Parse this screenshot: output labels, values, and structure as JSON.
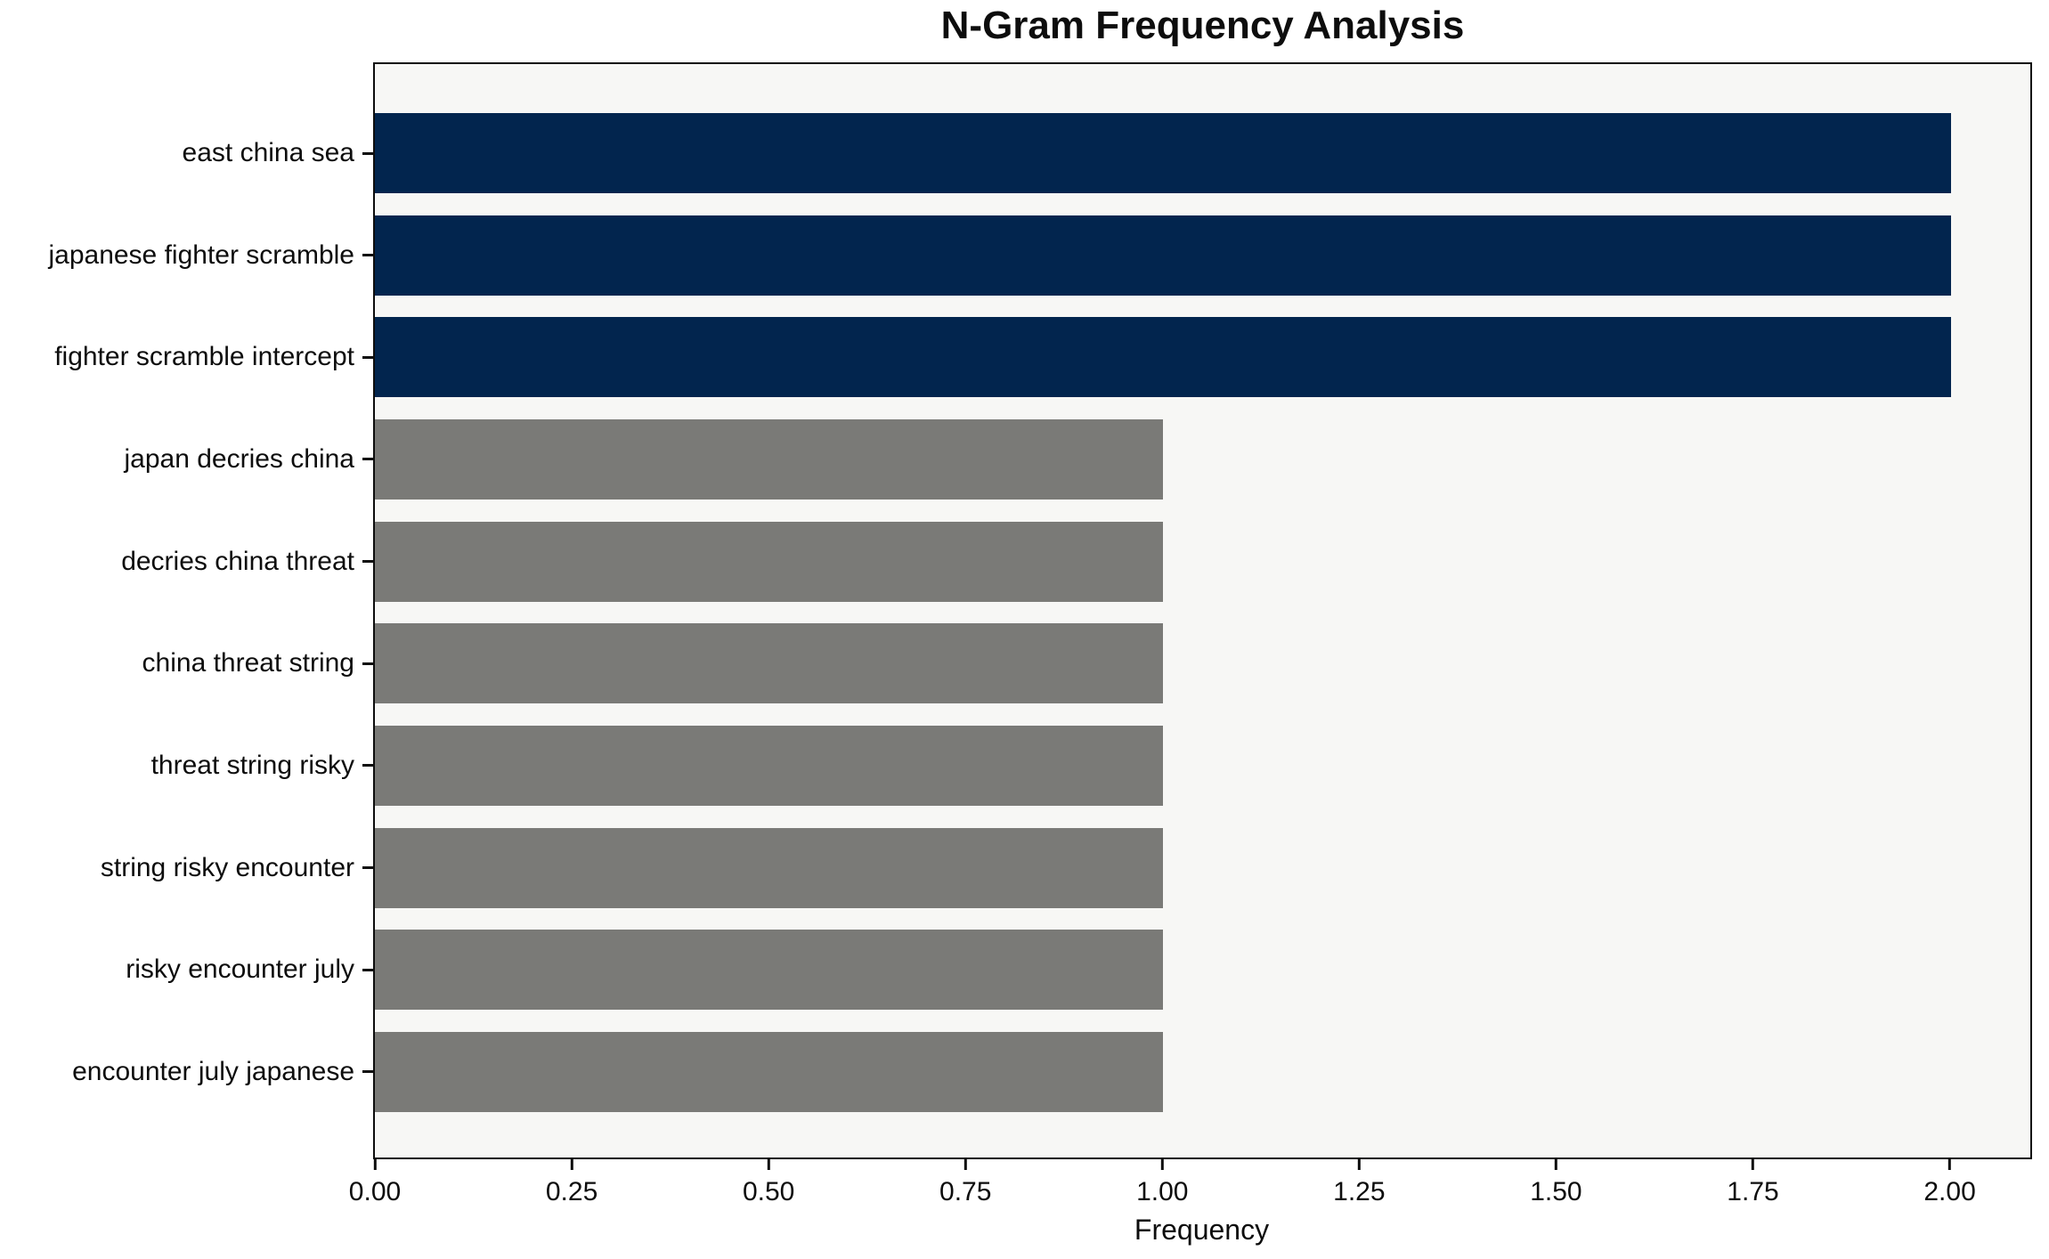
{
  "title": "N-Gram Frequency Analysis",
  "colors": {
    "highlight_bar": "#02254e",
    "default_bar": "#7a7a77",
    "plot_background": "#f7f7f5",
    "figure_background": "#ffffff",
    "axis_and_text": "#0d0d0d"
  },
  "chart_data": {
    "type": "bar",
    "orientation": "horizontal",
    "title": "N-Gram Frequency Analysis",
    "xlabel": "Frequency",
    "ylabel": "",
    "categories": [
      "east china sea",
      "japanese fighter scramble",
      "fighter scramble intercept",
      "japan decries china",
      "decries china threat",
      "china threat string",
      "threat string risky",
      "string risky encounter",
      "risky encounter july",
      "encounter july japanese"
    ],
    "values": [
      2,
      2,
      2,
      1,
      1,
      1,
      1,
      1,
      1,
      1
    ],
    "bar_colors": [
      "#02254e",
      "#02254e",
      "#02254e",
      "#7a7a77",
      "#7a7a77",
      "#7a7a77",
      "#7a7a77",
      "#7a7a77",
      "#7a7a77",
      "#7a7a77"
    ],
    "xlim": [
      0,
      2.1
    ],
    "x_ticks": [
      0,
      0.25,
      0.5,
      0.75,
      1.0,
      1.25,
      1.5,
      1.75,
      2.0
    ],
    "x_tick_labels": [
      "0.00",
      "0.25",
      "0.50",
      "0.75",
      "1.00",
      "1.25",
      "1.50",
      "1.75",
      "2.00"
    ],
    "grid": false,
    "legend": "none"
  }
}
